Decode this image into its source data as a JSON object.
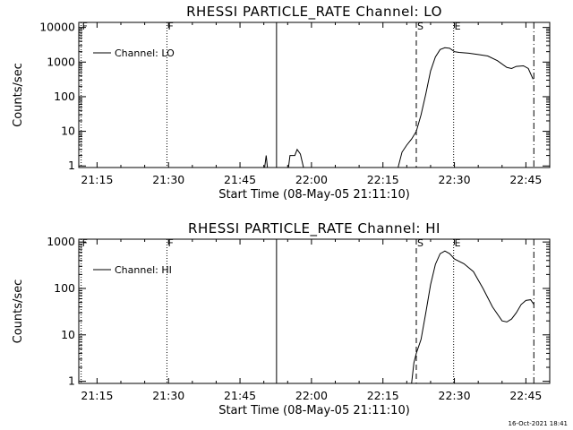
{
  "footer": {
    "timestamp": "16-Oct-2021 18:41"
  },
  "chart_data": [
    {
      "type": "line",
      "title": "RHESSI PARTICLE_RATE Channel: LO",
      "xlabel": "Start Time (08-May-05 21:11:10)",
      "ylabel": "Counts/sec",
      "y_scale": "log",
      "ylim": [
        0.9,
        14000
      ],
      "xlim": [
        "21:11:10",
        "22:50:00"
      ],
      "x_ticks": [
        "21:15",
        "21:30",
        "21:45",
        "22:00",
        "22:15",
        "22:30",
        "22:45"
      ],
      "y_ticks": [
        {
          "value": 1,
          "label": "1"
        },
        {
          "value": 10,
          "label": "10"
        },
        {
          "value": 100,
          "label": "100"
        },
        {
          "value": 1000,
          "label": "1000"
        },
        {
          "value": 10000,
          "label": "10000"
        }
      ],
      "legend": {
        "position": "top-left",
        "entries": [
          "Channel: LO"
        ]
      },
      "markers": [
        {
          "time": "21:11:40",
          "label": "F",
          "style": "dotted"
        },
        {
          "time": "21:29:40",
          "label": "F",
          "style": "dotted"
        },
        {
          "time": "21:52:40",
          "label": "",
          "style": "solid"
        },
        {
          "time": "22:22:00",
          "label": "S",
          "style": "dashed"
        },
        {
          "time": "22:29:50",
          "label": "E",
          "style": "dotted"
        },
        {
          "time": "22:46:40",
          "label": "",
          "style": "dashdot"
        }
      ],
      "series": [
        {
          "name": "Channel: LO",
          "segments": [
            [
              [
                "21:50:10",
                0.9
              ],
              [
                "21:50:30",
                2
              ],
              [
                "21:50:45",
                0.9
              ]
            ],
            [
              [
                "21:55:10",
                0.9
              ],
              [
                "21:55:30",
                2
              ],
              [
                "21:56:30",
                2
              ],
              [
                "21:57:00",
                3
              ],
              [
                "21:57:40",
                2.2
              ],
              [
                "21:58:20",
                0.9
              ]
            ],
            [
              [
                "22:18:10",
                0.9
              ],
              [
                "22:19:00",
                2.5
              ],
              [
                "22:20:00",
                4
              ],
              [
                "22:21:00",
                6
              ],
              [
                "22:22:00",
                10
              ],
              [
                "22:23:00",
                30
              ],
              [
                "22:24:00",
                120
              ],
              [
                "22:25:00",
                550
              ],
              [
                "22:26:00",
                1400
              ],
              [
                "22:27:00",
                2300
              ],
              [
                "22:28:00",
                2600
              ],
              [
                "22:29:00",
                2500
              ],
              [
                "22:30:00",
                2000
              ],
              [
                "22:31:00",
                1900
              ],
              [
                "22:33:00",
                1800
              ],
              [
                "22:35:00",
                1650
              ],
              [
                "22:37:00",
                1500
              ],
              [
                "22:39:00",
                1100
              ],
              [
                "22:41:00",
                700
              ],
              [
                "22:42:00",
                650
              ],
              [
                "22:43:00",
                750
              ],
              [
                "22:44:30",
                780
              ],
              [
                "22:45:30",
                650
              ],
              [
                "22:46:30",
                320
              ]
            ]
          ]
        }
      ]
    },
    {
      "type": "line",
      "title": "RHESSI PARTICLE_RATE Channel: HI",
      "xlabel": "Start Time (08-May-05 21:11:10)",
      "ylabel": "Counts/sec",
      "y_scale": "log",
      "ylim": [
        0.9,
        1150
      ],
      "xlim": [
        "21:11:10",
        "22:50:00"
      ],
      "x_ticks": [
        "21:15",
        "21:30",
        "21:45",
        "22:00",
        "22:15",
        "22:30",
        "22:45"
      ],
      "y_ticks": [
        {
          "value": 1,
          "label": "1"
        },
        {
          "value": 10,
          "label": "10"
        },
        {
          "value": 100,
          "label": "100"
        },
        {
          "value": 1000,
          "label": "1000"
        }
      ],
      "legend": {
        "position": "top-left",
        "entries": [
          "Channel: HI"
        ]
      },
      "markers": [
        {
          "time": "21:11:40",
          "label": "F",
          "style": "dotted"
        },
        {
          "time": "21:29:40",
          "label": "F",
          "style": "dotted"
        },
        {
          "time": "21:52:40",
          "label": "",
          "style": "solid"
        },
        {
          "time": "22:22:00",
          "label": "S",
          "style": "dashed"
        },
        {
          "time": "22:29:50",
          "label": "E",
          "style": "dotted"
        },
        {
          "time": "22:46:40",
          "label": "",
          "style": "dashdot"
        }
      ],
      "series": [
        {
          "name": "Channel: HI",
          "segments": [
            [
              [
                "22:21:00",
                0.9
              ],
              [
                "22:21:30",
                2.5
              ],
              [
                "22:22:00",
                4
              ],
              [
                "22:23:00",
                8
              ],
              [
                "22:24:00",
                30
              ],
              [
                "22:25:00",
                120
              ],
              [
                "22:26:00",
                330
              ],
              [
                "22:27:00",
                560
              ],
              [
                "22:28:00",
                640
              ],
              [
                "22:29:00",
                560
              ],
              [
                "22:30:00",
                430
              ],
              [
                "22:32:00",
                340
              ],
              [
                "22:34:00",
                230
              ],
              [
                "22:36:00",
                100
              ],
              [
                "22:38:00",
                40
              ],
              [
                "22:40:00",
                20
              ],
              [
                "22:41:00",
                19
              ],
              [
                "22:42:00",
                22
              ],
              [
                "22:43:00",
                30
              ],
              [
                "22:44:00",
                45
              ],
              [
                "22:45:00",
                55
              ],
              [
                "22:46:00",
                57
              ],
              [
                "22:46:40",
                45
              ]
            ]
          ]
        }
      ]
    }
  ]
}
